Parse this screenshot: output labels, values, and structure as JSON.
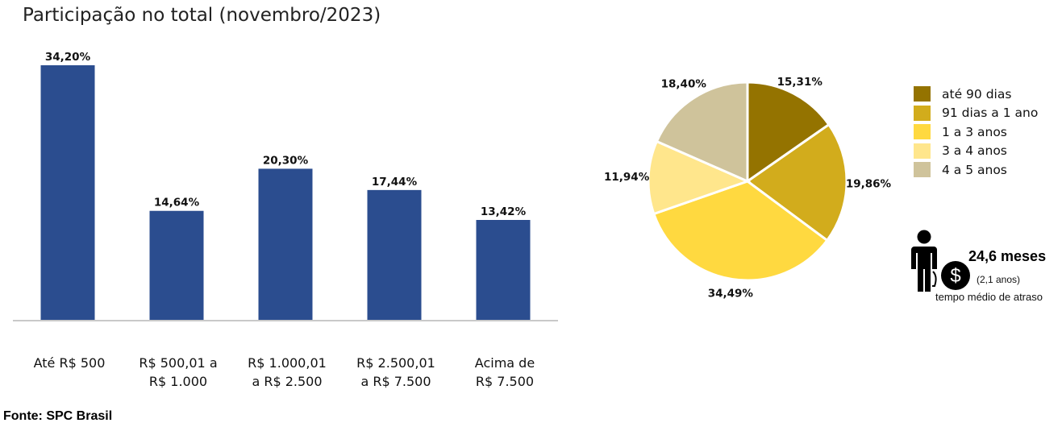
{
  "title": "Participação no total (novembro/2023)",
  "source": "Fonte: SPC Brasil",
  "chart_data": [
    {
      "type": "bar",
      "categories": [
        [
          "Até R$ 500"
        ],
        [
          "R$ 500,01 a",
          "R$ 1.000"
        ],
        [
          "R$ 1.000,01",
          "a R$ 2.500"
        ],
        [
          "R$ 2.500,01",
          "a R$ 7.500"
        ],
        [
          "Acima de",
          "R$ 7.500"
        ]
      ],
      "values": [
        34.2,
        14.64,
        20.3,
        17.44,
        13.42
      ],
      "data_labels": [
        "34,20%",
        "14,64%",
        "20,30%",
        "17,44%",
        "13,42%"
      ],
      "ylim": [
        0,
        34.2
      ],
      "color": "#2b4d8f",
      "grid": false
    },
    {
      "type": "pie",
      "categories": [
        "até 90 dias",
        "91 dias a 1 ano",
        "1 a 3 anos",
        "3 a 4 anos",
        "4 a 5 anos"
      ],
      "values": [
        15.31,
        19.86,
        34.49,
        11.94,
        18.4
      ],
      "data_labels": [
        "15,31%",
        "19,86%",
        "34,49%",
        "11,94%",
        "18,40%"
      ],
      "colors": [
        "#947300",
        "#d2ac1c",
        "#ffd940",
        "#ffe68c",
        "#cfc39b"
      ],
      "legend": "right"
    }
  ],
  "delay": {
    "value": "24,6 meses",
    "years": "(2,1 anos)",
    "caption": "tempo médio de atraso",
    "icons": [
      "person-icon",
      "dollar-icon"
    ]
  }
}
